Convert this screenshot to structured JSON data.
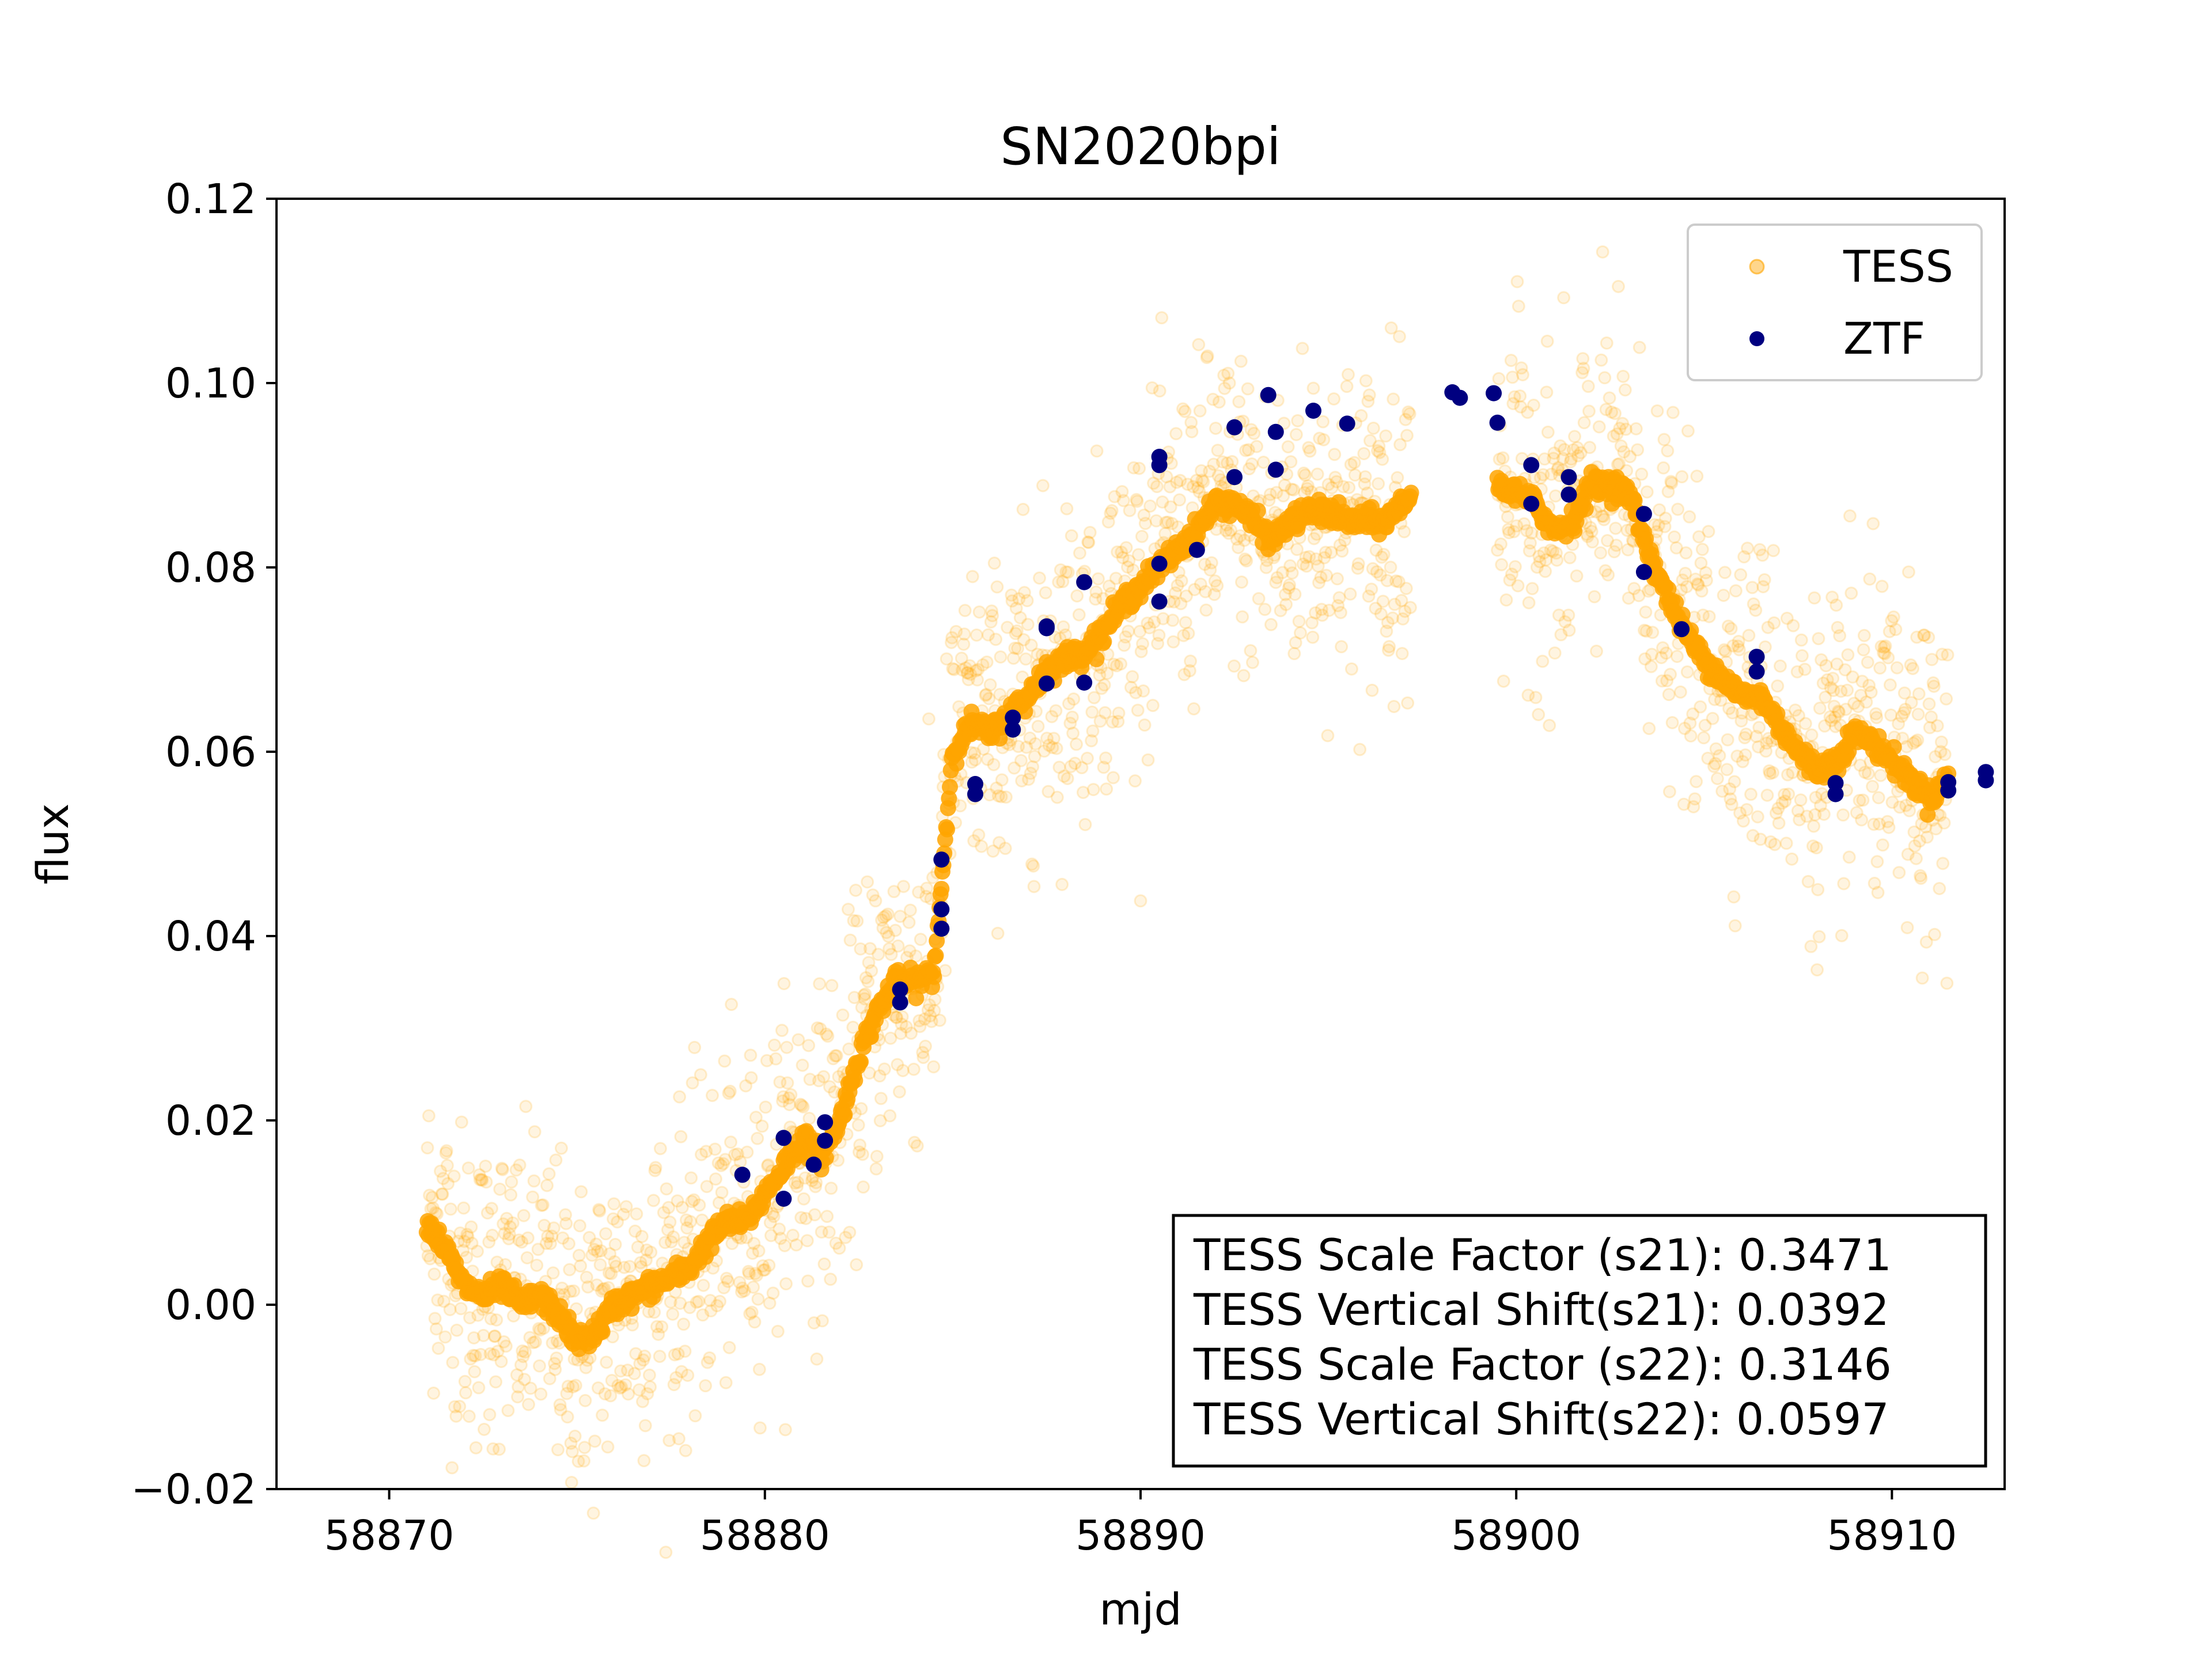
{
  "chart_data": {
    "type": "scatter",
    "title": "SN2020bpi",
    "xlabel": "mjd",
    "ylabel": "flux",
    "xlim": [
      58867,
      58913
    ],
    "ylim": [
      -0.02,
      0.12
    ],
    "xticks": [
      58870,
      58880,
      58890,
      58900,
      58910
    ],
    "xtick_labels": [
      "58870",
      "58880",
      "58890",
      "58900",
      "58910"
    ],
    "yticks": [
      -0.02,
      0.0,
      0.02,
      0.04,
      0.06,
      0.08,
      0.1,
      0.12
    ],
    "ytick_labels": [
      "−0.02",
      "0.00",
      "0.02",
      "0.04",
      "0.06",
      "0.08",
      "0.10",
      "0.12"
    ],
    "grid": false,
    "legend": {
      "placement": "top-right",
      "entries": [
        {
          "label": "TESS",
          "color": "#ffa500",
          "alpha": 0.35
        },
        {
          "label": "ZTF",
          "color": "#000080",
          "alpha": 1.0
        }
      ]
    },
    "annotation": {
      "placement": "bottom-right",
      "lines": [
        "TESS Scale Factor (s21): 0.3471",
        "TESS Vertical Shift(s21): 0.0392",
        "TESS Scale Factor (s22): 0.3146",
        "TESS Vertical Shift(s22): 0.0597"
      ]
    },
    "series": [
      {
        "name": "TESS",
        "color": "#ffa500",
        "note_style": "dense points: scattered raw (faint) plus smoothed trend (solid)",
        "smoothed_trend": {
          "x": [
            58871.0,
            58871.5,
            58872.0,
            58872.5,
            58873.0,
            58873.5,
            58874.0,
            58874.5,
            58875.0,
            58875.5,
            58876.0,
            58876.5,
            58877.0,
            58877.5,
            58878.0,
            58878.5,
            58879.0,
            58879.5,
            58880.0,
            58880.5,
            58881.0,
            58881.5,
            58882.0,
            58882.5,
            58883.0,
            58883.5,
            58884.0,
            58884.5,
            58885.0,
            58885.5,
            58886.0,
            58886.5,
            58887.0,
            58887.5,
            58888.0,
            58888.5,
            58889.0,
            58889.5,
            58890.0,
            58890.5,
            58891.0,
            58891.5,
            58892.0,
            58892.5,
            58893.0,
            58893.5,
            58894.0,
            58894.5,
            58895.0,
            58895.5,
            58896.0,
            58896.5,
            58897.0,
            58897.2
          ],
          "y": [
            0.009,
            0.006,
            0.002,
            0.001,
            0.002,
            0.0,
            0.001,
            -0.001,
            -0.004,
            -0.003,
            0.0,
            0.001,
            0.002,
            0.003,
            0.004,
            0.007,
            0.009,
            0.009,
            0.012,
            0.015,
            0.018,
            0.016,
            0.02,
            0.027,
            0.032,
            0.035,
            0.035,
            0.036,
            0.06,
            0.063,
            0.062,
            0.064,
            0.066,
            0.069,
            0.07,
            0.071,
            0.073,
            0.076,
            0.078,
            0.08,
            0.082,
            0.084,
            0.087,
            0.087,
            0.085,
            0.083,
            0.085,
            0.086,
            0.086,
            0.085,
            0.085,
            0.085,
            0.087,
            0.088
          ]
        },
        "smoothed_trend_2": {
          "x": [
            58899.5,
            58900.0,
            58900.5,
            58901.0,
            58901.5,
            58902.0,
            58902.5,
            58903.0,
            58903.5,
            58904.0,
            58904.5,
            58905.0,
            58905.5,
            58906.0,
            58906.5,
            58907.0,
            58907.5,
            58908.0,
            58908.5,
            58909.0,
            58909.5,
            58910.0,
            58910.5,
            58911.0,
            58911.5
          ],
          "y": [
            0.089,
            0.088,
            0.087,
            0.084,
            0.085,
            0.089,
            0.089,
            0.088,
            0.082,
            0.077,
            0.073,
            0.07,
            0.068,
            0.066,
            0.066,
            0.063,
            0.06,
            0.058,
            0.059,
            0.062,
            0.061,
            0.059,
            0.057,
            0.055,
            0.057
          ]
        }
      },
      {
        "name": "ZTF",
        "color": "#000080",
        "x": [
          58879.4,
          58880.5,
          58880.5,
          58881.3,
          58881.6,
          58881.6,
          58883.6,
          58883.6,
          58884.7,
          58884.7,
          58884.7,
          58885.6,
          58885.6,
          58886.6,
          58886.6,
          58887.5,
          58887.5,
          58887.5,
          58888.5,
          58888.5,
          58890.5,
          58890.5,
          58890.5,
          58890.5,
          58891.5,
          58892.5,
          58892.5,
          58893.4,
          58893.6,
          58893.6,
          58894.6,
          58895.5,
          58898.3,
          58898.5,
          58899.4,
          58899.5,
          58900.4,
          58900.4,
          58901.4,
          58901.4,
          58903.4,
          58903.4,
          58904.4,
          58906.4,
          58906.4,
          58908.5,
          58908.5,
          58911.5,
          58911.5,
          58912.5,
          58912.5
        ],
        "y": [
          0.0141,
          0.0181,
          0.0115,
          0.0152,
          0.0198,
          0.0178,
          0.0342,
          0.0328,
          0.0483,
          0.0429,
          0.0408,
          0.0565,
          0.0554,
          0.0637,
          0.0624,
          0.0736,
          0.0734,
          0.0674,
          0.0784,
          0.0675,
          0.092,
          0.0911,
          0.0804,
          0.0763,
          0.0819,
          0.0952,
          0.0898,
          0.0987,
          0.0947,
          0.0906,
          0.097,
          0.0956,
          0.099,
          0.0984,
          0.0989,
          0.0957,
          0.0911,
          0.0869,
          0.0898,
          0.0879,
          0.0858,
          0.0795,
          0.0733,
          0.0703,
          0.0687,
          0.0566,
          0.0554,
          0.0567,
          0.0558,
          0.0578,
          0.0569
        ]
      }
    ]
  }
}
